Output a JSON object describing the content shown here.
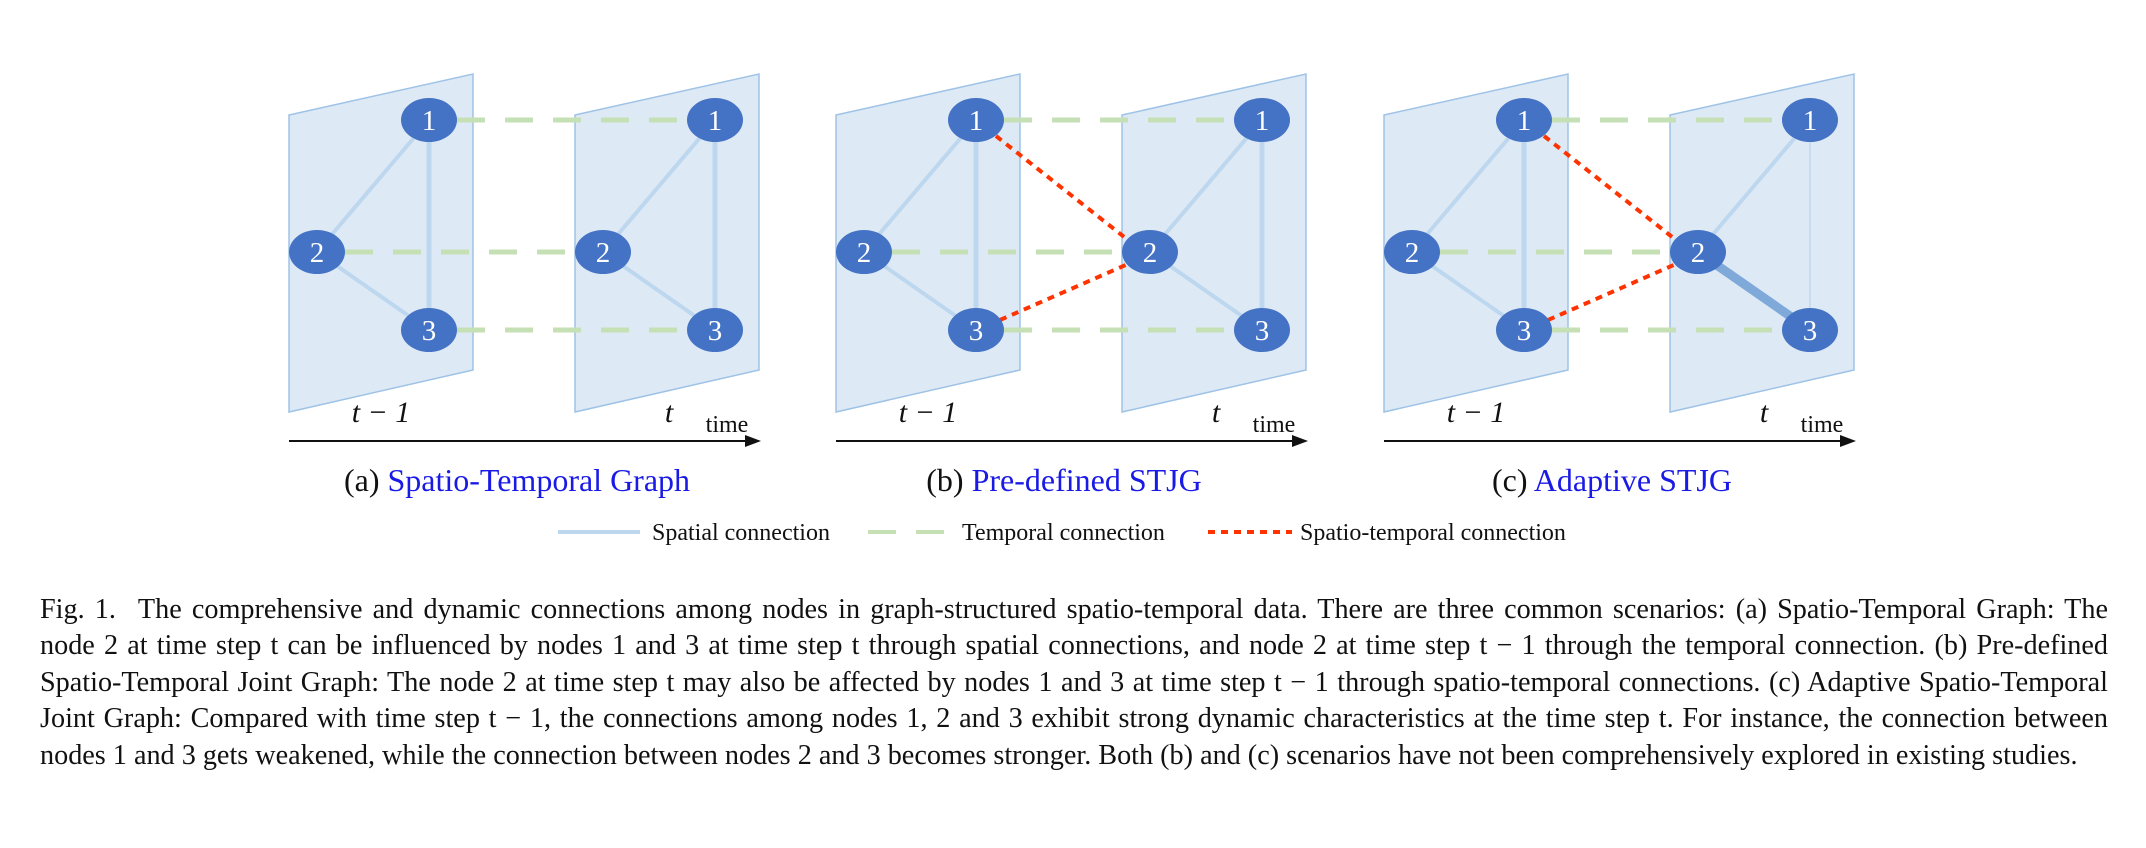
{
  "panels": [
    {
      "id": "a",
      "sub_label": "(a)",
      "title": "Spatio-Temporal Graph",
      "left_step": "t − 1",
      "right_step": "t",
      "time_label": "time",
      "nodes": [
        "1",
        "2",
        "3"
      ]
    },
    {
      "id": "b",
      "sub_label": "(b)",
      "title": "Pre-defined STJG",
      "left_step": "t − 1",
      "right_step": "t",
      "time_label": "time",
      "nodes": [
        "1",
        "2",
        "3"
      ]
    },
    {
      "id": "c",
      "sub_label": "(c)",
      "title": "Adaptive STJG",
      "left_step": "t − 1",
      "right_step": "t",
      "time_label": "time",
      "nodes": [
        "1",
        "2",
        "3"
      ]
    }
  ],
  "legend": {
    "spatial": "Spatial connection",
    "temporal": "Temporal connection",
    "spatio_temporal": "Spatio-temporal connection"
  },
  "colors": {
    "plane_fill": "#dce8f5",
    "plane_stroke": "#9ec3e6",
    "node": "#4472c4",
    "spatial": "#bdd7ee",
    "spatial_strong": "#7fa9d9",
    "temporal": "#c5e0b4",
    "spatio_temporal": "#ff3300",
    "subcaption_accent": "#1a1ae6"
  },
  "caption": {
    "label": "Fig. 1.",
    "text": "The comprehensive and dynamic connections among nodes in graph-structured spatio-temporal data. There are three common scenarios: (a) Spatio-Temporal Graph: The node 2 at time step t can be influenced by nodes 1 and 3 at time step t through spatial connections, and node 2 at time step t − 1 through the temporal connection. (b) Pre-defined Spatio-Temporal Joint Graph: The node 2 at time step t may also be affected by nodes 1 and 3 at time step t − 1 through spatio-temporal connections. (c) Adaptive Spatio-Temporal Joint Graph: Compared with time step t − 1, the connections among nodes 1, 2 and 3 exhibit strong dynamic characteristics at the time step t. For instance, the connection between nodes 1 and 3 gets weakened, while the connection between nodes 2 and 3 becomes stronger. Both (b) and (c) scenarios have not been comprehensively explored in existing studies."
  }
}
